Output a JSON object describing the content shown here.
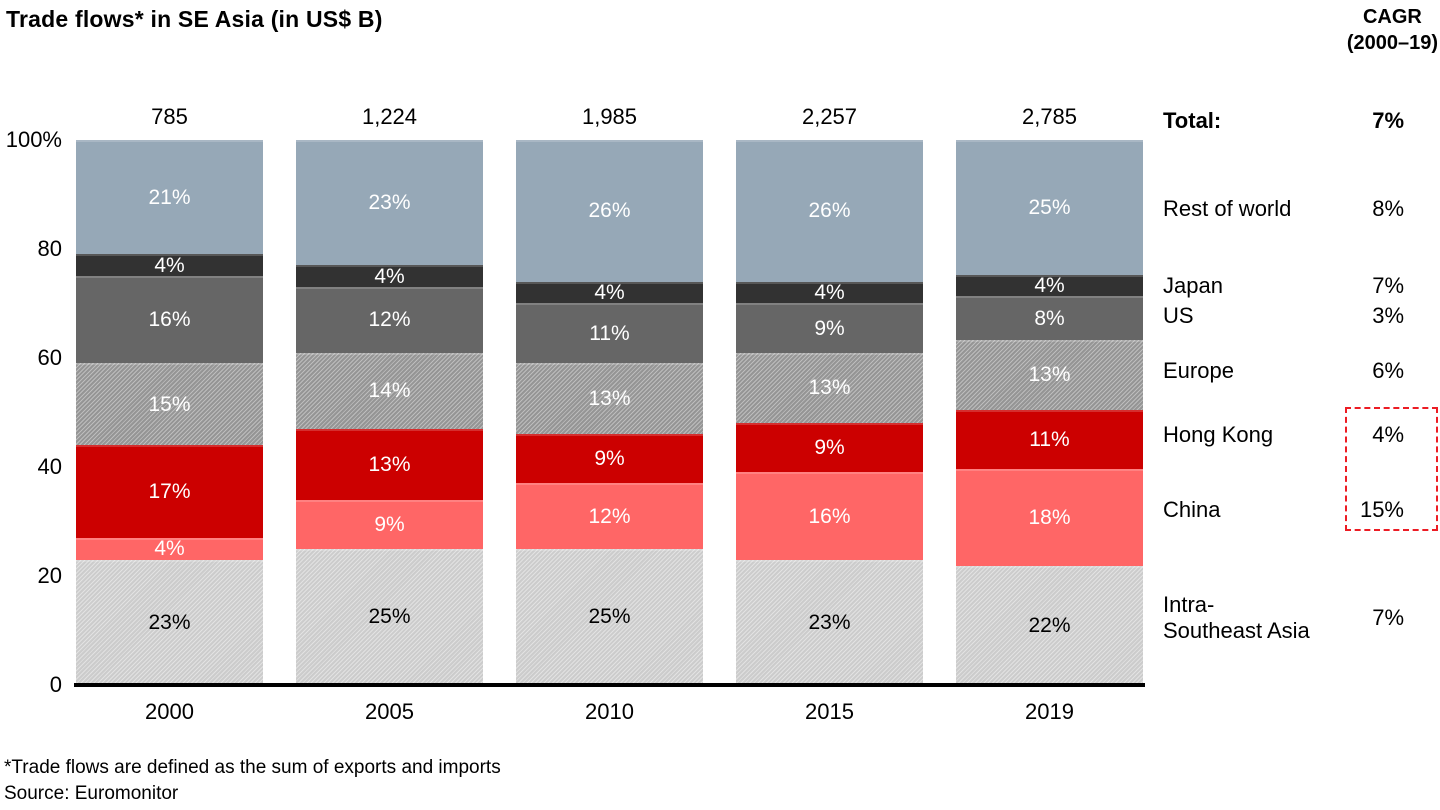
{
  "title": "Trade flows* in SE Asia (in US$ B)",
  "cagr_header": {
    "line1": "CAGR",
    "line2": "(2000–19)"
  },
  "y_axis": {
    "labels": [
      "100%",
      "80",
      "60",
      "40",
      "20",
      "0"
    ]
  },
  "chart_data": {
    "type": "bar",
    "stacked": true,
    "unit": "percent of total",
    "title": "Trade flows* in SE Asia (in US$ B)",
    "categories": [
      "2000",
      "2005",
      "2010",
      "2015",
      "2019"
    ],
    "totals": [
      "785",
      "1,224",
      "1,985",
      "2,257",
      "2,785"
    ],
    "ylim": [
      0,
      100
    ],
    "series": [
      {
        "name": "Intra-Southeast Asia",
        "color": "#d3d3d3",
        "text_color": "#000000",
        "hatch": true,
        "values": [
          23,
          25,
          25,
          23,
          22
        ],
        "cagr": "7%"
      },
      {
        "name": "China",
        "color": "#ff6666",
        "text_color": "#ffffff",
        "hatch": false,
        "values": [
          4,
          9,
          12,
          16,
          18
        ],
        "cagr": "15%"
      },
      {
        "name": "Hong Kong",
        "color": "#cc0000",
        "text_color": "#ffffff",
        "hatch": false,
        "values": [
          17,
          13,
          9,
          9,
          11
        ],
        "cagr": "4%"
      },
      {
        "name": "Europe",
        "color": "#9a9a9a",
        "text_color": "#ffffff",
        "hatch": true,
        "values": [
          15,
          14,
          13,
          13,
          13
        ],
        "cagr": "6%"
      },
      {
        "name": "US",
        "color": "#666666",
        "text_color": "#ffffff",
        "hatch": false,
        "values": [
          16,
          12,
          11,
          9,
          8
        ],
        "cagr": "3%"
      },
      {
        "name": "Japan",
        "color": "#323232",
        "text_color": "#ffffff",
        "hatch": false,
        "values": [
          4,
          4,
          4,
          4,
          4
        ],
        "cagr": "7%"
      },
      {
        "name": "Rest of world",
        "color": "#96a8b7",
        "text_color": "#ffffff",
        "hatch": false,
        "values": [
          21,
          23,
          26,
          26,
          25
        ],
        "cagr": "8%"
      }
    ],
    "total_cagr": "7%"
  },
  "legend": {
    "total_label": "Total:",
    "total_value": "7%",
    "rows": [
      {
        "label": "Rest of world",
        "value": "8%"
      },
      {
        "label": "Japan",
        "value": "7%"
      },
      {
        "label": "US",
        "value": "3%"
      },
      {
        "label": "Europe",
        "value": "6%"
      },
      {
        "label": "Hong Kong",
        "value": "4%"
      },
      {
        "label": "China",
        "value": "15%"
      },
      {
        "label": "Intra-\nSoutheast Asia",
        "value": "7%"
      }
    ],
    "highlight_box_color": "#ec1c24"
  },
  "footnotes": {
    "definition": "*Trade flows are defined as the sum of exports and imports",
    "source": "Source: Euromonitor"
  }
}
